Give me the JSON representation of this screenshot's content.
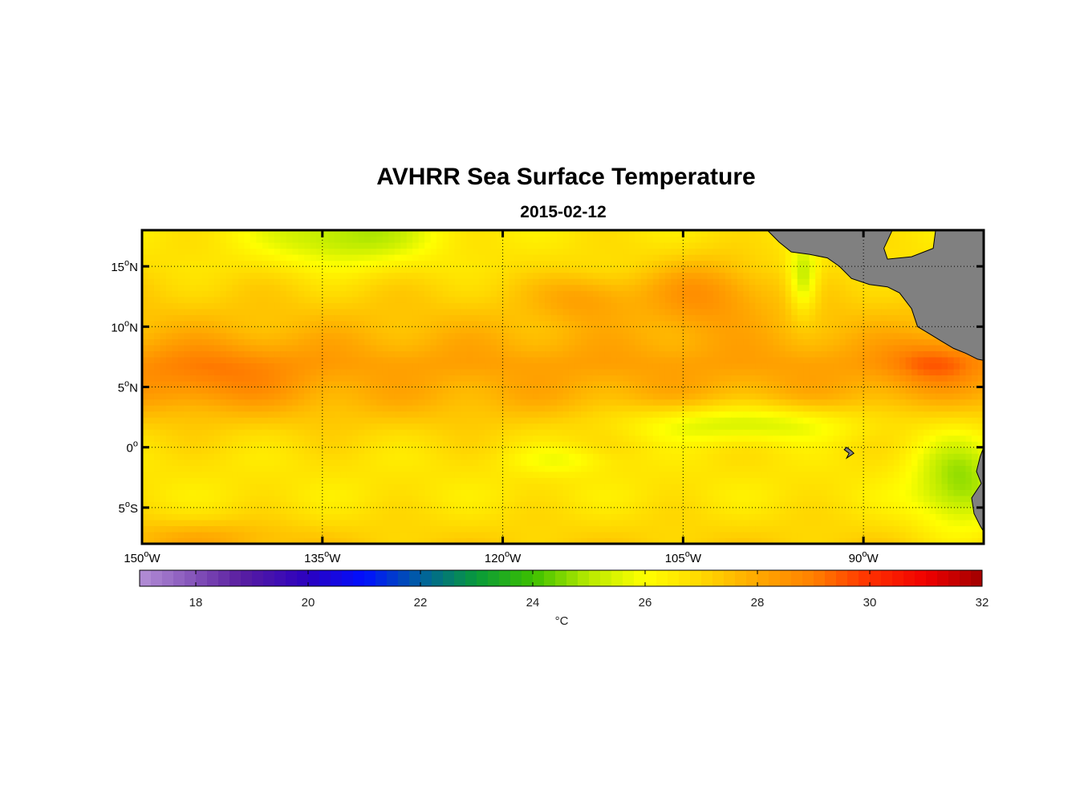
{
  "figure": {
    "title": "AVHRR Sea Surface Temperature",
    "subtitle": "2015-02-12"
  },
  "chart_data": {
    "type": "heatmap",
    "title": "AVHRR Sea Surface Temperature",
    "subtitle": "2015-02-12",
    "xlim": [
      -150,
      -80
    ],
    "ylim": [
      -8,
      18
    ],
    "grid": true,
    "x_ticks": [
      {
        "value": -150,
        "deg": "150",
        "suffix": "W"
      },
      {
        "value": -135,
        "deg": "135",
        "suffix": "W"
      },
      {
        "value": -120,
        "deg": "120",
        "suffix": "W"
      },
      {
        "value": -105,
        "deg": "105",
        "suffix": "W"
      },
      {
        "value": -90,
        "deg": "90",
        "suffix": "W"
      }
    ],
    "y_ticks": [
      {
        "value": 15,
        "deg": "15",
        "suffix": "N"
      },
      {
        "value": 10,
        "deg": "10",
        "suffix": "N"
      },
      {
        "value": 5,
        "deg": "5",
        "suffix": "N"
      },
      {
        "value": 0,
        "deg": "0",
        "suffix": ""
      },
      {
        "value": -5,
        "deg": "5",
        "suffix": "S"
      }
    ],
    "colorbar": {
      "min": 17,
      "max": 32,
      "ticks": [
        18,
        20,
        22,
        24,
        26,
        28,
        30,
        32
      ],
      "label": "°C",
      "stops": [
        {
          "v": 17,
          "c": "#b48fd6"
        },
        {
          "v": 18.8,
          "c": "#5a1ea0"
        },
        {
          "v": 20,
          "c": "#2b00c0"
        },
        {
          "v": 21,
          "c": "#0010ff"
        },
        {
          "v": 22,
          "c": "#0060a0"
        },
        {
          "v": 23,
          "c": "#089a3a"
        },
        {
          "v": 24,
          "c": "#3cc000"
        },
        {
          "v": 25,
          "c": "#b8ea00"
        },
        {
          "v": 26,
          "c": "#ffff00"
        },
        {
          "v": 27,
          "c": "#ffd800"
        },
        {
          "v": 28,
          "c": "#ffa800"
        },
        {
          "v": 29,
          "c": "#ff8000"
        },
        {
          "v": 30,
          "c": "#ff3000"
        },
        {
          "v": 31,
          "c": "#f00000"
        },
        {
          "v": 32,
          "c": "#a00000"
        }
      ]
    },
    "sst_base": [
      {
        "lat": 18,
        "v": 26.6
      },
      {
        "lat": 15,
        "v": 26.8
      },
      {
        "lat": 10,
        "v": 27.6
      },
      {
        "lat": 7,
        "v": 28.2
      },
      {
        "lat": 4,
        "v": 27.8
      },
      {
        "lat": 1,
        "v": 27.0
      },
      {
        "lat": -1,
        "v": 26.7
      },
      {
        "lat": -4,
        "v": 26.6
      },
      {
        "lat": -8,
        "v": 27.2
      }
    ],
    "sst_features": [
      {
        "lon": -133,
        "lat": 17.5,
        "rlon": 7,
        "rlat": 2.5,
        "dv": -1.8
      },
      {
        "lon": -100,
        "lat": 2,
        "rlon": 10,
        "rlat": 1.6,
        "dv": -1.8
      },
      {
        "lon": -82,
        "lat": -3,
        "rlon": 4,
        "rlat": 4.5,
        "dv": -2.0
      },
      {
        "lon": -95,
        "lat": 14,
        "rlon": 1.2,
        "rlat": 2.8,
        "dv": -2.0
      },
      {
        "lon": -115,
        "lat": -1,
        "rlon": 4,
        "rlat": 1.2,
        "dv": -0.8
      },
      {
        "lon": -103,
        "lat": 13,
        "rlon": 5,
        "rlat": 3,
        "dv": 1.4
      },
      {
        "lon": -113,
        "lat": 12.5,
        "rlon": 4,
        "rlat": 2,
        "dv": 1.0
      },
      {
        "lon": -144,
        "lat": 6,
        "rlon": 7,
        "rlat": 2.5,
        "dv": 1.0
      },
      {
        "lon": -84,
        "lat": 7,
        "rlon": 4,
        "rlat": 2,
        "dv": 1.4
      },
      {
        "lon": -145,
        "lat": -7.5,
        "rlon": 8,
        "rlat": 1.5,
        "dv": 0.8
      }
    ],
    "land": [
      {
        "name": "central-america",
        "points": [
          [
            -98,
            18
          ],
          [
            -97,
            17
          ],
          [
            -96,
            16.2
          ],
          [
            -94.5,
            16
          ],
          [
            -93,
            15.7
          ],
          [
            -92,
            15
          ],
          [
            -91,
            14
          ],
          [
            -89.5,
            13.5
          ],
          [
            -88,
            13.3
          ],
          [
            -87,
            12.8
          ],
          [
            -86,
            11.5
          ],
          [
            -85.5,
            10
          ],
          [
            -84.5,
            9.4
          ],
          [
            -83.5,
            8.8
          ],
          [
            -82.5,
            8.2
          ],
          [
            -81.5,
            7.8
          ],
          [
            -80.5,
            7.3
          ],
          [
            -80,
            7.2
          ],
          [
            -80,
            18
          ],
          [
            -84,
            18
          ],
          [
            -84.2,
            16.5
          ],
          [
            -86,
            15.8
          ],
          [
            -88,
            15.6
          ],
          [
            -88.3,
            16.5
          ],
          [
            -87.6,
            18
          ]
        ]
      },
      {
        "name": "south-america",
        "points": [
          [
            -80,
            0
          ],
          [
            -80.3,
            -0.8
          ],
          [
            -80.6,
            -2
          ],
          [
            -80.2,
            -3
          ],
          [
            -81,
            -4.2
          ],
          [
            -80.8,
            -5.5
          ],
          [
            -80.3,
            -6.5
          ],
          [
            -80,
            -7
          ],
          [
            -80,
            0
          ]
        ]
      },
      {
        "name": "galapagos",
        "points": [
          [
            -91.4,
            0
          ],
          [
            -91,
            -0.3
          ],
          [
            -90.8,
            -0.5
          ],
          [
            -91.4,
            -0.9
          ],
          [
            -91.2,
            -0.5
          ],
          [
            -91.6,
            -0.2
          ],
          [
            -91.4,
            0
          ]
        ]
      }
    ],
    "land_color": "#808080"
  }
}
